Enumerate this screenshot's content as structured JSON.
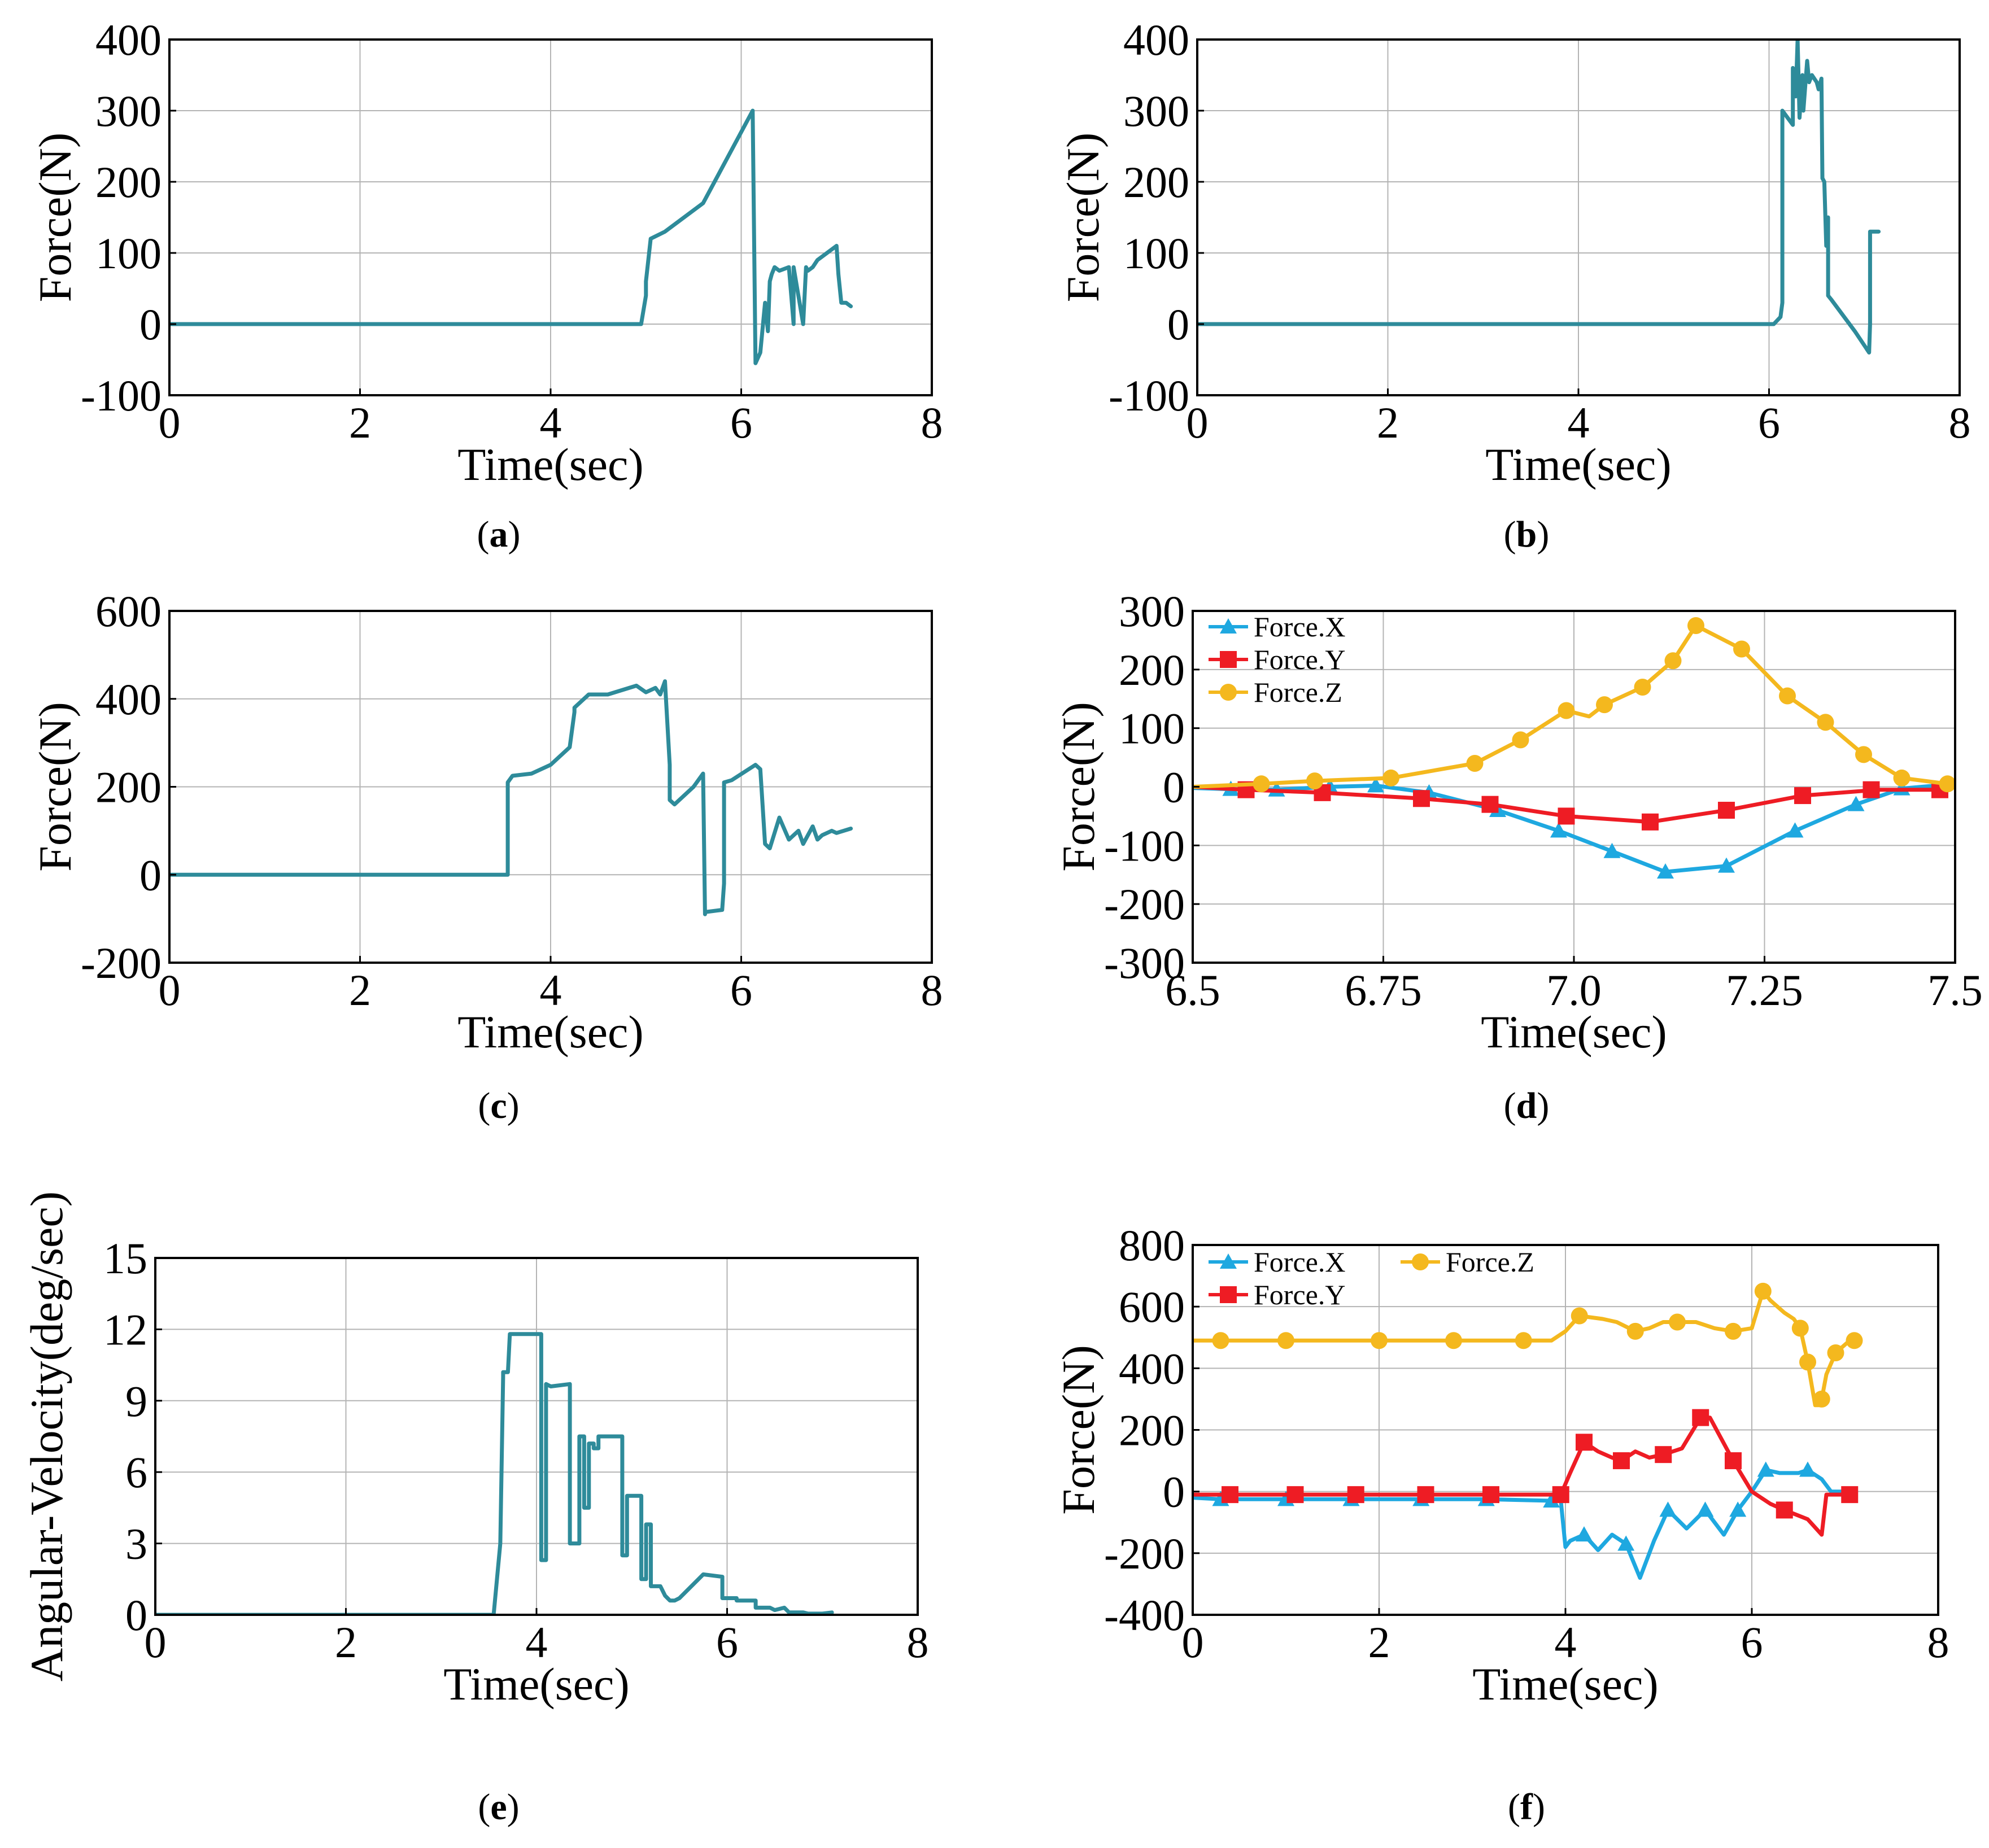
{
  "colors": {
    "teal": "#2e8b9a",
    "cyan": "#1ea8e0",
    "red": "#ee1c24",
    "gold": "#f4b81e"
  },
  "chart_data": [
    {
      "id": "a",
      "type": "line",
      "panel_label": "a",
      "xlabel": "Time(sec)",
      "ylabel": "Force(N)",
      "xlim": [
        0,
        8
      ],
      "ylim": [
        -100,
        400
      ],
      "xticks": [
        0,
        2,
        4,
        6,
        8
      ],
      "xtick_labels": [
        "0",
        "2",
        "4",
        "6",
        "8"
      ],
      "yticks": [
        -100,
        0,
        100,
        200,
        300,
        400
      ],
      "ytick_labels": [
        "-100",
        "0",
        "100",
        "200",
        "300",
        "400"
      ],
      "grid": true,
      "series": [
        {
          "name": "Force",
          "color": "#2e8b9a",
          "marker": "none",
          "x": [
            0,
            0.8,
            4.95,
            5.0,
            5.0,
            5.05,
            5.05,
            5.2,
            5.6,
            6.12,
            6.15,
            6.2,
            6.25,
            6.28,
            6.3,
            6.32,
            6.35,
            6.4,
            6.5,
            6.55,
            6.55,
            6.65,
            6.68,
            6.7,
            6.75,
            6.8,
            7.0,
            7.02,
            7.05,
            7.1,
            7.15
          ],
          "y": [
            0,
            0,
            0,
            40,
            60,
            120,
            120,
            130,
            170,
            300,
            -55,
            -40,
            30,
            -10,
            60,
            70,
            80,
            75,
            80,
            0,
            80,
            0,
            80,
            75,
            80,
            90,
            110,
            70,
            30,
            30,
            25
          ]
        }
      ]
    },
    {
      "id": "b",
      "type": "line",
      "panel_label": "b",
      "xlabel": "Time(sec)",
      "ylabel": "Force(N)",
      "xlim": [
        0,
        8
      ],
      "ylim": [
        -100,
        400
      ],
      "xticks": [
        0,
        2,
        4,
        6,
        8
      ],
      "xtick_labels": [
        "0",
        "2",
        "4",
        "6",
        "8"
      ],
      "yticks": [
        -100,
        0,
        100,
        200,
        300,
        400
      ],
      "ytick_labels": [
        "-100",
        "0",
        "100",
        "200",
        "300",
        "400"
      ],
      "grid": true,
      "series": [
        {
          "name": "Force",
          "color": "#2e8b9a",
          "marker": "none",
          "x": [
            0,
            6.05,
            6.12,
            6.14,
            6.14,
            6.25,
            6.25,
            6.28,
            6.3,
            6.32,
            6.35,
            6.36,
            6.4,
            6.42,
            6.45,
            6.5,
            6.52,
            6.55,
            6.56,
            6.58,
            6.6,
            6.62,
            6.62,
            6.65,
            6.9,
            7.05,
            7.06,
            7.06,
            7.1,
            7.15
          ],
          "y": [
            0,
            0,
            10,
            30,
            300,
            280,
            360,
            320,
            400,
            290,
            350,
            300,
            370,
            340,
            350,
            340,
            330,
            345,
            205,
            200,
            110,
            150,
            40,
            35,
            -10,
            -40,
            0,
            130,
            130,
            130
          ]
        }
      ]
    },
    {
      "id": "c",
      "type": "line",
      "panel_label": "c",
      "xlabel": "Time(sec)",
      "ylabel": "Force(N)",
      "xlim": [
        0,
        8
      ],
      "ylim": [
        -200,
        600
      ],
      "xticks": [
        0,
        2,
        4,
        6,
        8
      ],
      "xtick_labels": [
        "0",
        "2",
        "4",
        "6",
        "8"
      ],
      "yticks": [
        -200,
        0,
        200,
        400,
        600
      ],
      "ytick_labels": [
        "-200",
        "0",
        "200",
        "400",
        "600"
      ],
      "grid": true,
      "series": [
        {
          "name": "Force",
          "color": "#2e8b9a",
          "marker": "none",
          "x": [
            0,
            3.55,
            3.55,
            3.6,
            3.8,
            4.0,
            4.2,
            4.25,
            4.25,
            4.4,
            4.6,
            4.9,
            5.0,
            5.1,
            5.15,
            5.2,
            5.25,
            5.25,
            5.3,
            5.5,
            5.6,
            5.62,
            5.62,
            5.8,
            5.82,
            5.82,
            5.9,
            6.15,
            6.2,
            6.25,
            6.3,
            6.4,
            6.5,
            6.6,
            6.65,
            6.75,
            6.8,
            6.85,
            6.95,
            7.0,
            7.15
          ],
          "y": [
            0,
            0,
            210,
            225,
            230,
            250,
            290,
            370,
            380,
            410,
            410,
            430,
            415,
            425,
            410,
            440,
            250,
            170,
            160,
            200,
            230,
            -90,
            -85,
            -80,
            -20,
            210,
            215,
            250,
            240,
            70,
            60,
            130,
            80,
            100,
            70,
            110,
            80,
            90,
            100,
            95,
            105
          ]
        }
      ]
    },
    {
      "id": "d",
      "type": "line",
      "panel_label": "d",
      "xlabel": "Time(sec)",
      "ylabel": "Force(N)",
      "xlim": [
        6.5,
        7.5
      ],
      "ylim": [
        -300,
        300
      ],
      "xticks": [
        6.5,
        6.75,
        7.0,
        7.25,
        7.5
      ],
      "xtick_labels": [
        "6.5",
        "6.75",
        "7.0",
        "7.25",
        "7.5"
      ],
      "yticks": [
        -300,
        -200,
        -100,
        0,
        100,
        200,
        300
      ],
      "ytick_labels": [
        "-300",
        "-200",
        "-100",
        "0",
        "100",
        "200",
        "300"
      ],
      "grid": true,
      "legend": {
        "placement": "top-left",
        "labels": [
          "Force.X",
          "Force.Y",
          "Force.Z"
        ]
      },
      "series": [
        {
          "name": "Force.X",
          "color": "#1ea8e0",
          "marker": "triangle",
          "x": [
            6.5,
            6.55,
            6.61,
            6.68,
            6.74,
            6.81,
            6.9,
            6.98,
            7.05,
            7.12,
            7.2,
            7.29,
            7.37,
            7.43,
            7.5
          ],
          "y": [
            -2,
            -4,
            -5,
            0,
            2,
            -10,
            -40,
            -75,
            -110,
            -145,
            -135,
            -75,
            -30,
            -3,
            5
          ],
          "markers_x": [
            6.55,
            6.61,
            6.68,
            6.74,
            6.81,
            6.9,
            6.98,
            7.05,
            7.12,
            7.2,
            7.29,
            7.37,
            7.43
          ],
          "markers_y": [
            -4,
            -5,
            0,
            2,
            -10,
            -40,
            -75,
            -110,
            -145,
            -135,
            -75,
            -30,
            -3
          ]
        },
        {
          "name": "Force.Y",
          "color": "#ee1c24",
          "marker": "square",
          "x": [
            6.5,
            6.57,
            6.67,
            6.8,
            6.89,
            6.99,
            7.1,
            7.2,
            7.3,
            7.4,
            7.48
          ],
          "y": [
            0,
            -5,
            -10,
            -20,
            -30,
            -50,
            -60,
            -40,
            -15,
            -5,
            -5
          ],
          "markers_x": [
            6.57,
            6.67,
            6.8,
            6.89,
            6.99,
            7.1,
            7.2,
            7.3,
            7.39,
            7.48
          ],
          "markers_y": [
            -5,
            -10,
            -20,
            -30,
            -50,
            -60,
            -40,
            -15,
            -5,
            -5
          ]
        },
        {
          "name": "Force.Z",
          "color": "#f4b81e",
          "marker": "circle",
          "x": [
            6.5,
            6.59,
            6.66,
            6.76,
            6.87,
            6.93,
            6.99,
            7.02,
            7.04,
            7.09,
            7.13,
            7.16,
            7.22,
            7.28,
            7.33,
            7.38,
            7.43,
            7.49
          ],
          "y": [
            0,
            5,
            10,
            15,
            40,
            80,
            130,
            120,
            140,
            170,
            215,
            275,
            235,
            155,
            110,
            55,
            15,
            5
          ],
          "markers_x": [
            6.59,
            6.66,
            6.76,
            6.87,
            6.93,
            6.99,
            7.04,
            7.09,
            7.13,
            7.16,
            7.22,
            7.28,
            7.33,
            7.38,
            7.43,
            7.49
          ],
          "markers_y": [
            5,
            10,
            15,
            40,
            80,
            130,
            140,
            170,
            215,
            275,
            235,
            155,
            110,
            55,
            15,
            5
          ]
        }
      ]
    },
    {
      "id": "e",
      "type": "line",
      "panel_label": "e",
      "xlabel": "Time(sec)",
      "ylabel": "Angular-Velocity(deg/sec)",
      "xlim": [
        0,
        8
      ],
      "ylim": [
        0,
        15
      ],
      "xticks": [
        0,
        2,
        4,
        6,
        8
      ],
      "xtick_labels": [
        "0",
        "2",
        "4",
        "6",
        "8"
      ],
      "yticks": [
        0,
        3,
        6,
        9,
        12,
        15
      ],
      "ytick_labels": [
        "0",
        "3",
        "6",
        "9",
        "12",
        "15"
      ],
      "grid": true,
      "series": [
        {
          "name": "Angular-Velocity",
          "color": "#2e8b9a",
          "marker": "none",
          "x": [
            0,
            3.55,
            3.62,
            3.65,
            3.65,
            3.7,
            3.72,
            3.72,
            4.05,
            4.05,
            4.1,
            4.1,
            4.15,
            4.15,
            4.35,
            4.35,
            4.45,
            4.45,
            4.5,
            4.5,
            4.55,
            4.55,
            4.6,
            4.6,
            4.65,
            4.65,
            4.9,
            4.9,
            4.95,
            4.95,
            5.1,
            5.1,
            5.15,
            5.15,
            5.2,
            5.2,
            5.3,
            5.35,
            5.4,
            5.45,
            5.5,
            5.5,
            5.75,
            5.75,
            5.95,
            5.95,
            6.1,
            6.1,
            6.3,
            6.3,
            6.45,
            6.5,
            6.6,
            6.65,
            6.8,
            6.85,
            7.0,
            7.1
          ],
          "y": [
            0,
            0,
            3,
            10,
            10.2,
            10.2,
            11.8,
            11.8,
            11.8,
            2.3,
            2.3,
            9.7,
            9.6,
            9.6,
            9.7,
            3,
            3,
            7.5,
            7.5,
            4.5,
            4.5,
            7.2,
            7.2,
            7,
            7,
            7.5,
            7.5,
            2.5,
            2.5,
            5,
            5,
            1.5,
            1.5,
            3.8,
            3.8,
            1.2,
            1.2,
            0.8,
            0.6,
            0.6,
            0.7,
            0.7,
            1.7,
            1.7,
            1.6,
            0.7,
            0.7,
            0.6,
            0.6,
            0.3,
            0.3,
            0.2,
            0.3,
            0.1,
            0.1,
            0.05,
            0.05,
            0.1
          ]
        }
      ]
    },
    {
      "id": "f",
      "type": "line",
      "panel_label": "f",
      "xlabel": "Time(sec)",
      "ylabel": "Force(N)",
      "xlim": [
        0,
        8
      ],
      "ylim": [
        -400,
        800
      ],
      "xticks": [
        0,
        2,
        4,
        6,
        8
      ],
      "xtick_labels": [
        "0",
        "2",
        "4",
        "6",
        "8"
      ],
      "yticks": [
        -400,
        -200,
        0,
        200,
        400,
        600,
        800
      ],
      "ytick_labels": [
        "-400",
        "-200",
        "0",
        "200",
        "400",
        "600",
        "800"
      ],
      "grid": true,
      "legend": {
        "placement": "top-left",
        "labels": [
          "Force.X",
          "Force.Y",
          "Force.Z"
        ]
      },
      "series": [
        {
          "name": "Force.X",
          "color": "#1ea8e0",
          "marker": "triangle",
          "x": [
            0,
            0.3,
            1.0,
            1.7,
            2.45,
            3.15,
            3.85,
            3.95,
            4.0,
            4.05,
            4.2,
            4.35,
            4.5,
            4.65,
            4.8,
            4.95,
            5.1,
            5.3,
            5.5,
            5.7,
            5.85,
            6.0,
            6.15,
            6.3,
            6.5,
            6.6,
            6.75,
            6.85,
            7.0,
            7.1
          ],
          "y": [
            -20,
            -25,
            -25,
            -25,
            -25,
            -25,
            -30,
            -30,
            -180,
            -160,
            -140,
            -190,
            -140,
            -170,
            -280,
            -160,
            -60,
            -120,
            -60,
            -140,
            -60,
            0,
            70,
            60,
            60,
            70,
            40,
            0,
            0,
            -10
          ],
          "markers_x": [
            0.3,
            1.0,
            1.7,
            2.45,
            3.15,
            3.85,
            4.2,
            4.65,
            5.1,
            5.5,
            5.85,
            6.15,
            6.6
          ],
          "markers_y": [
            -25,
            -25,
            -25,
            -25,
            -25,
            -30,
            -140,
            -170,
            -60,
            -60,
            -60,
            70,
            70
          ]
        },
        {
          "name": "Force.Y",
          "color": "#ee1c24",
          "marker": "square",
          "x": [
            0,
            0.4,
            1.1,
            1.75,
            2.5,
            3.2,
            3.95,
            4.05,
            4.2,
            4.35,
            4.5,
            4.6,
            4.75,
            4.9,
            5.05,
            5.25,
            5.45,
            5.55,
            5.8,
            6.0,
            6.2,
            6.35,
            6.6,
            6.75,
            6.8,
            7.05
          ],
          "y": [
            -10,
            -10,
            -10,
            -10,
            -10,
            -10,
            -10,
            60,
            160,
            130,
            110,
            100,
            130,
            110,
            120,
            140,
            240,
            240,
            100,
            0,
            -40,
            -60,
            -90,
            -140,
            -10,
            -10
          ],
          "markers_x": [
            0.4,
            1.1,
            1.75,
            2.5,
            3.2,
            3.95,
            4.2,
            4.6,
            5.05,
            5.45,
            5.8,
            6.35,
            7.05
          ],
          "markers_y": [
            -10,
            -10,
            -10,
            -10,
            -10,
            -10,
            160,
            100,
            120,
            240,
            100,
            -60,
            -10
          ]
        },
        {
          "name": "Force.Z",
          "color": "#f4b81e",
          "marker": "circle",
          "x": [
            0,
            0.3,
            1.0,
            2.0,
            2.8,
            3.55,
            3.85,
            4.0,
            4.15,
            4.4,
            4.55,
            4.75,
            4.9,
            5.05,
            5.2,
            5.4,
            5.6,
            5.8,
            6.0,
            6.12,
            6.2,
            6.35,
            6.45,
            6.52,
            6.6,
            6.68,
            6.72,
            6.75,
            6.8,
            6.9,
            7.05,
            7.1
          ],
          "y": [
            490,
            490,
            490,
            490,
            490,
            490,
            490,
            520,
            570,
            560,
            550,
            520,
            530,
            550,
            550,
            550,
            530,
            520,
            530,
            650,
            620,
            580,
            560,
            530,
            420,
            280,
            280,
            300,
            380,
            450,
            490,
            490
          ],
          "markers_x": [
            0.3,
            1.0,
            2.0,
            2.8,
            3.55,
            4.15,
            4.75,
            5.2,
            5.8,
            6.12,
            6.52,
            6.6,
            6.75,
            6.9,
            7.1
          ],
          "markers_y": [
            490,
            490,
            490,
            490,
            490,
            570,
            520,
            550,
            520,
            650,
            530,
            420,
            300,
            450,
            490
          ]
        }
      ]
    }
  ]
}
